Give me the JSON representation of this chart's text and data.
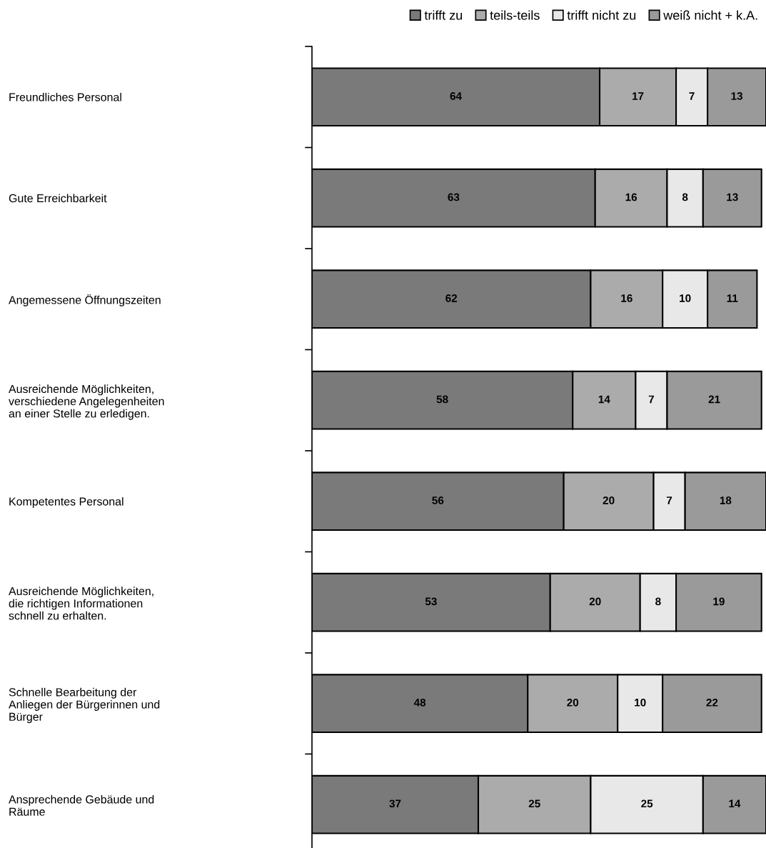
{
  "chart_data": {
    "type": "bar",
    "orientation": "horizontal",
    "stacked": true,
    "data_labels": true,
    "legend": "top right",
    "grid": false,
    "categories": [
      "Freundliches Personal",
      "Gute Erreichbarkeit",
      "Angemessene Öffnungszeiten",
      "Ausreichende Möglichkeiten,\nverschiedene Angelegenheiten\nan einer Stelle zu erledigen.",
      "Kompetentes Personal",
      "Ausreichende Möglichkeiten,\ndie richtigen Informationen\nschnell zu erhalten.",
      "Schnelle Bearbeitung der\nAnliegen der Bürgerinnen und\nBürger",
      "Ansprechende Gebäude und\nRäume"
    ],
    "series": [
      {
        "name": "trifft zu",
        "color": "#7a7a7a",
        "values": [
          64,
          63,
          62,
          58,
          56,
          53,
          48,
          37
        ]
      },
      {
        "name": "teils-teils",
        "color": "#ababab",
        "values": [
          17,
          16,
          16,
          14,
          20,
          20,
          20,
          25
        ]
      },
      {
        "name": "trifft nicht zu",
        "color": "#e8e8e8",
        "values": [
          7,
          8,
          10,
          7,
          7,
          8,
          10,
          25
        ]
      },
      {
        "name": "weiß nicht + k.A.",
        "color": "#9a9a9a",
        "values": [
          13,
          13,
          11,
          21,
          18,
          19,
          22,
          14
        ]
      }
    ]
  }
}
